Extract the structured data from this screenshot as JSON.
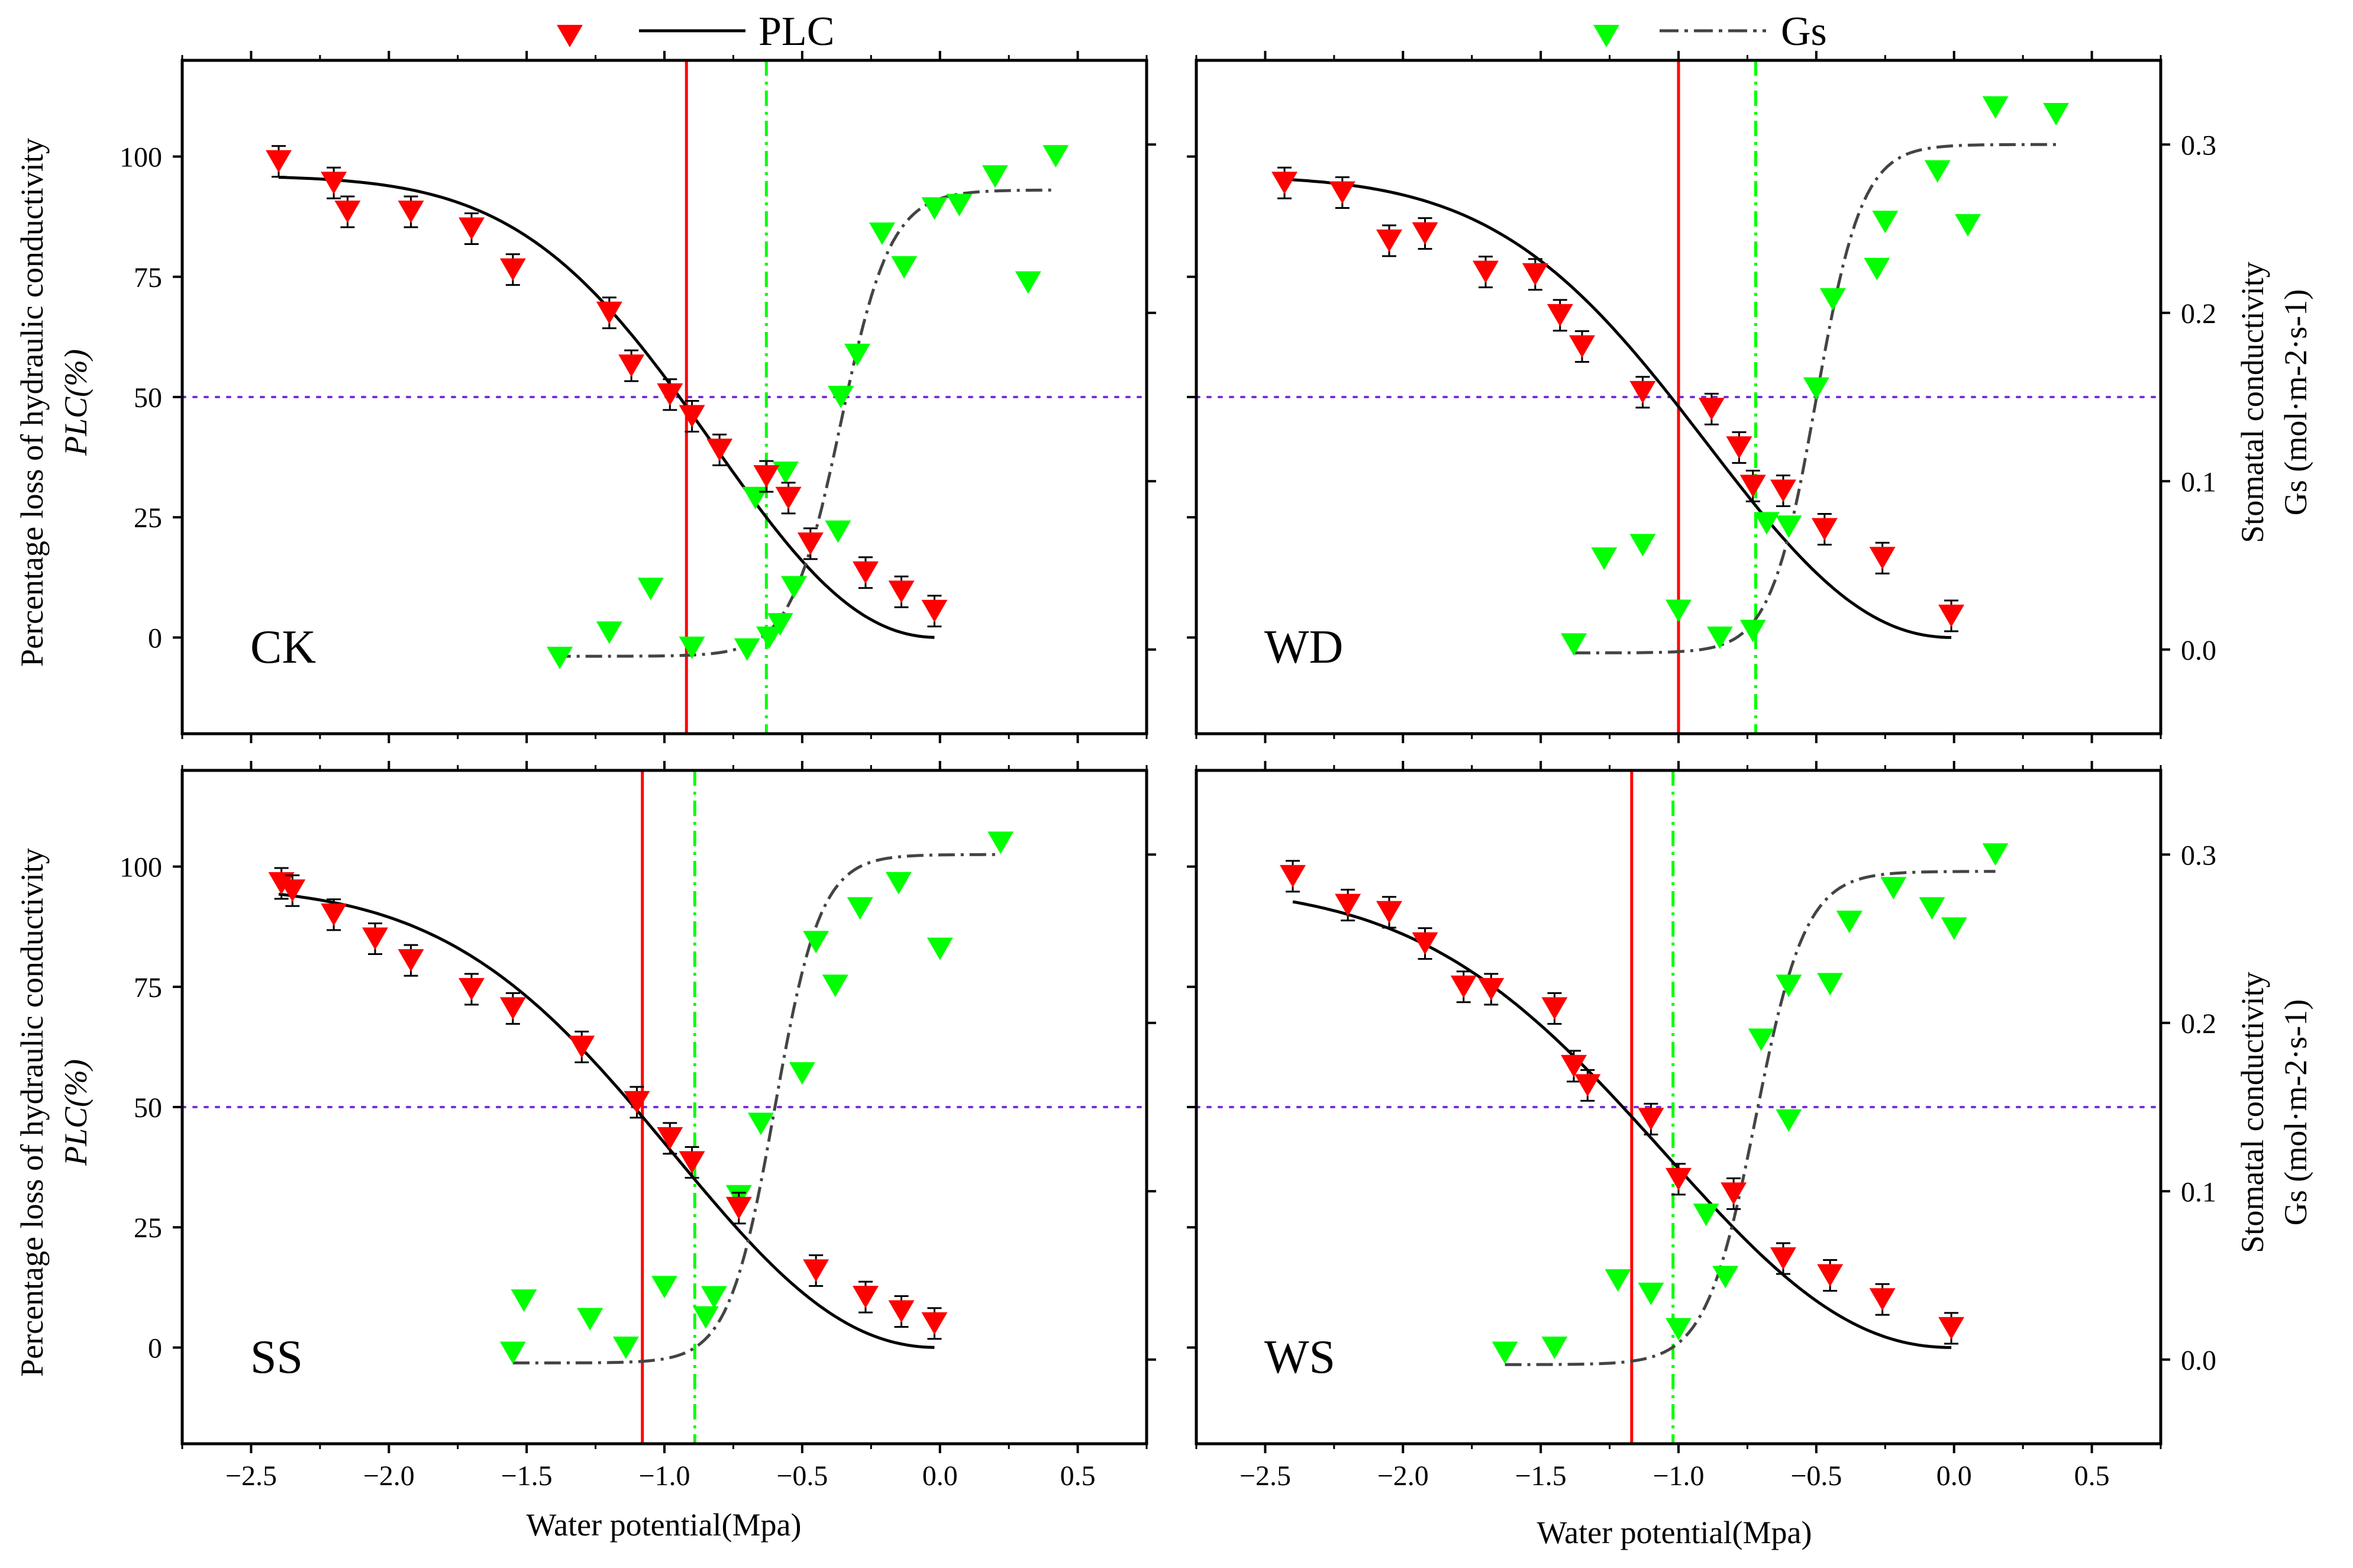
{
  "chart_data": {
    "type": "scatter",
    "layout": "2x2",
    "legend": [
      {
        "label": "PLC",
        "marker": "triangle-down",
        "marker_color": "#ff0000",
        "line": "solid",
        "line_color": "#000000"
      },
      {
        "label": "Gs",
        "marker": "triangle-down",
        "marker_color": "#00ff00",
        "line": "dash-dot",
        "line_color": "#444444"
      }
    ],
    "xlabel": "Water potential(Mpa)",
    "ylabel_left_line1": "Percentage loss of hydraulic conductivity",
    "ylabel_left_line2": "PLC(%)",
    "ylabel_right_line1": "Stomatal conductivity",
    "ylabel_right_line2": "Gs (mol·m-2·s-1)",
    "xlim": [
      -2.75,
      0.75
    ],
    "xticks": [
      -2.5,
      -2.0,
      -1.5,
      -1.0,
      -0.5,
      0.0,
      0.5
    ],
    "xtick_labels": [
      "−2.5",
      "−2.0",
      "−1.5",
      "−1.0",
      "−0.5",
      "0.0",
      "0.5"
    ],
    "ylim_left": [
      -20,
      120
    ],
    "yticks_left": [
      0,
      25,
      50,
      75,
      100
    ],
    "ytick_labels_left": [
      "0",
      "25",
      "50",
      "75",
      "100"
    ],
    "ylim_right": [
      -0.05,
      0.35
    ],
    "yticks_right": [
      0.0,
      0.1,
      0.2,
      0.3
    ],
    "ytick_labels_right": [
      "0.0",
      "0.1",
      "0.2",
      "0.3"
    ],
    "threshold_plc": 50,
    "colors": {
      "plc": "#ff0000",
      "gs": "#00ff00",
      "fit_plc": "#000000",
      "fit_gs": "#444444",
      "threshold": "#7b2fd6"
    },
    "panels": [
      {
        "label": "CK",
        "p50": -0.92,
        "gs50": -0.63,
        "plc_points": [
          [
            -2.4,
            99
          ],
          [
            -2.2,
            94.5
          ],
          [
            -2.15,
            88.5
          ],
          [
            -1.92,
            88.5
          ],
          [
            -1.7,
            85
          ],
          [
            -1.55,
            76.5
          ],
          [
            -1.2,
            67.5
          ],
          [
            -1.12,
            56.5
          ],
          [
            -0.98,
            50.5
          ],
          [
            -0.9,
            46
          ],
          [
            -0.8,
            39
          ],
          [
            -0.63,
            33.5
          ],
          [
            -0.55,
            29
          ],
          [
            -0.47,
            19.5
          ],
          [
            -0.27,
            13.5
          ],
          [
            -0.14,
            9.5
          ],
          [
            -0.02,
            5.5
          ]
        ],
        "gs_points": [
          [
            -1.38,
            -0.005
          ],
          [
            -1.2,
            0.01
          ],
          [
            -1.05,
            0.036
          ],
          [
            -0.9,
            0.001
          ],
          [
            -0.7,
            0.0
          ],
          [
            -0.67,
            0.09
          ],
          [
            -0.62,
            0.007
          ],
          [
            -0.58,
            0.015
          ],
          [
            -0.56,
            0.105
          ],
          [
            -0.53,
            0.037
          ],
          [
            -0.37,
            0.07
          ],
          [
            -0.36,
            0.15
          ],
          [
            -0.3,
            0.175
          ],
          [
            -0.21,
            0.247
          ],
          [
            -0.13,
            0.227
          ],
          [
            -0.02,
            0.262
          ],
          [
            0.07,
            0.264
          ],
          [
            0.2,
            0.281
          ],
          [
            0.32,
            0.218
          ],
          [
            0.42,
            0.293
          ]
        ],
        "plc_fit": {
          "a": 0.9,
          "x0": -0.92,
          "xmin": -2.4,
          "xmax": -0.02
        },
        "gs_fit": {
          "min": -0.004,
          "max": 0.273,
          "x0": -0.36,
          "k": 11,
          "xmin": -1.4,
          "xmax": 0.42
        }
      },
      {
        "label": "WD",
        "p50": -1.0,
        "gs50": -0.72,
        "plc_points": [
          [
            -2.43,
            94.5
          ],
          [
            -2.22,
            92.5
          ],
          [
            -2.05,
            82.5
          ],
          [
            -1.92,
            84
          ],
          [
            -1.7,
            76
          ],
          [
            -1.52,
            75.5
          ],
          [
            -1.43,
            67
          ],
          [
            -1.35,
            60.5
          ],
          [
            -1.13,
            51
          ],
          [
            -0.88,
            47.5
          ],
          [
            -0.78,
            39.5
          ],
          [
            -0.73,
            31.5
          ],
          [
            -0.62,
            30.5
          ],
          [
            -0.47,
            22.5
          ],
          [
            -0.26,
            16.5
          ],
          [
            -0.01,
            4.5
          ]
        ],
        "gs_points": [
          [
            -1.38,
            0.003
          ],
          [
            -1.27,
            0.054
          ],
          [
            -1.13,
            0.062
          ],
          [
            -1.0,
            0.023
          ],
          [
            -0.85,
            0.007
          ],
          [
            -0.73,
            0.011
          ],
          [
            -0.68,
            0.075
          ],
          [
            -0.6,
            0.073
          ],
          [
            -0.5,
            0.155
          ],
          [
            -0.44,
            0.208
          ],
          [
            -0.28,
            0.226
          ],
          [
            -0.25,
            0.254
          ],
          [
            -0.06,
            0.284
          ],
          [
            0.05,
            0.252
          ],
          [
            0.15,
            0.322
          ],
          [
            0.37,
            0.318
          ]
        ],
        "plc_fit": {
          "a": 0.9,
          "x0": -1.0,
          "xmin": -2.43,
          "xmax": -0.01
        },
        "gs_fit": {
          "min": -0.002,
          "max": 0.3,
          "x0": -0.5,
          "k": 12,
          "xmin": -1.38,
          "xmax": 0.37
        }
      },
      {
        "label": "SS",
        "p50": -1.08,
        "gs50": -0.89,
        "plc_points": [
          [
            -2.39,
            96.5
          ],
          [
            -2.35,
            95
          ],
          [
            -2.2,
            90
          ],
          [
            -2.05,
            85
          ],
          [
            -1.92,
            80.5
          ],
          [
            -1.7,
            74.5
          ],
          [
            -1.55,
            70.5
          ],
          [
            -1.3,
            62.5
          ],
          [
            -1.1,
            51
          ],
          [
            -0.98,
            43.5
          ],
          [
            -0.9,
            38.5
          ],
          [
            -0.73,
            29
          ],
          [
            -0.45,
            16
          ],
          [
            -0.27,
            10.5
          ],
          [
            -0.14,
            7.5
          ],
          [
            -0.02,
            5
          ]
        ],
        "gs_points": [
          [
            -1.55,
            0.004
          ],
          [
            -1.51,
            0.035
          ],
          [
            -1.27,
            0.024
          ],
          [
            -1.14,
            0.007
          ],
          [
            -1.0,
            0.043
          ],
          [
            -0.85,
            0.025
          ],
          [
            -0.82,
            0.037
          ],
          [
            -0.73,
            0.097
          ],
          [
            -0.65,
            0.14
          ],
          [
            -0.5,
            0.17
          ],
          [
            -0.45,
            0.248
          ],
          [
            -0.38,
            0.222
          ],
          [
            -0.29,
            0.268
          ],
          [
            -0.15,
            0.283
          ],
          [
            0.0,
            0.244
          ],
          [
            0.22,
            0.307
          ]
        ],
        "plc_fit": {
          "a": 0.9,
          "x0": -1.08,
          "xmin": -2.4,
          "xmax": -0.02
        },
        "gs_fit": {
          "min": -0.002,
          "max": 0.3,
          "x0": -0.6,
          "k": 12,
          "xmin": -1.55,
          "xmax": 0.22
        }
      },
      {
        "label": "WS",
        "p50": -1.17,
        "gs50": -1.02,
        "plc_points": [
          [
            -2.4,
            98
          ],
          [
            -2.2,
            92
          ],
          [
            -2.05,
            90.5
          ],
          [
            -1.92,
            84
          ],
          [
            -1.78,
            75
          ],
          [
            -1.68,
            74.5
          ],
          [
            -1.45,
            70.5
          ],
          [
            -1.38,
            58.5
          ],
          [
            -1.33,
            54.5
          ],
          [
            -1.1,
            47.5
          ],
          [
            -1.0,
            35
          ],
          [
            -0.8,
            32
          ],
          [
            -0.62,
            18.5
          ],
          [
            -0.45,
            15
          ],
          [
            -0.26,
            10
          ],
          [
            -0.01,
            4
          ]
        ],
        "gs_points": [
          [
            -1.63,
            0.004
          ],
          [
            -1.45,
            0.007
          ],
          [
            -1.22,
            0.047
          ],
          [
            -1.1,
            0.039
          ],
          [
            -1.0,
            0.018
          ],
          [
            -0.9,
            0.086
          ],
          [
            -0.83,
            0.049
          ],
          [
            -0.7,
            0.19
          ],
          [
            -0.6,
            0.142
          ],
          [
            -0.6,
            0.222
          ],
          [
            -0.45,
            0.223
          ],
          [
            -0.38,
            0.26
          ],
          [
            -0.22,
            0.28
          ],
          [
            -0.08,
            0.268
          ],
          [
            0.0,
            0.256
          ],
          [
            0.15,
            0.3
          ]
        ],
        "plc_fit": {
          "a": 0.9,
          "x0": -1.17,
          "xmin": -2.4,
          "xmax": -0.01
        },
        "gs_fit": {
          "min": -0.003,
          "max": 0.29,
          "x0": -0.72,
          "k": 11,
          "xmin": -1.63,
          "xmax": 0.15
        }
      }
    ]
  }
}
